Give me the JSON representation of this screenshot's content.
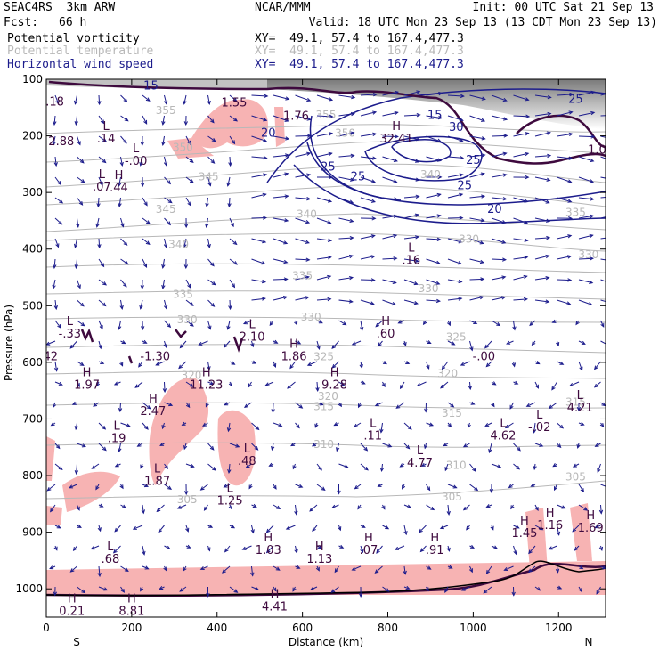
{
  "header": {
    "model": "SEAC4RS  3km ARW",
    "center": "NCAR/MMM",
    "init": "Init: 00 UTC Sat 21 Sep 13",
    "fcst_label": "Fcst:",
    "fcst_value": "66 h",
    "valid": "Valid: 18 UTC Mon 23 Sep 13 (13 CDT Mon 23 Sep 13)",
    "fields": [
      {
        "name": "Potential vorticity",
        "xy": "XY=  49.1, 57.4 to 167.4,477.3",
        "color": "#000000"
      },
      {
        "name": "Potential temperature",
        "xy": "XY=  49.1, 57.4 to 167.4,477.3",
        "color": "#b8b8b8"
      },
      {
        "name": "Horizontal wind speed",
        "xy": "XY=  49.1, 57.4 to 167.4,477.3",
        "color": "#1c1c8c"
      }
    ]
  },
  "chart_data": {
    "type": "cross-section",
    "xlabel": "Distance (km)",
    "ylabel": "Pressure (hPa)",
    "xlim": [
      0,
      1310
    ],
    "ylim": [
      1050,
      100
    ],
    "x_ticks": [
      "0",
      "200",
      "400",
      "600",
      "800",
      "1000",
      "1200"
    ],
    "y_ticks": [
      "100",
      "200",
      "300",
      "400",
      "500",
      "600",
      "700",
      "800",
      "900",
      "1000"
    ],
    "x_end_labels": {
      "left": "S",
      "right": "N"
    },
    "theta_labels": [
      {
        "x": 280,
        "p": 155,
        "t": "355"
      },
      {
        "x": 655,
        "p": 163,
        "t": "355"
      },
      {
        "x": 700,
        "p": 195,
        "t": "350"
      },
      {
        "x": 320,
        "p": 220,
        "t": "350"
      },
      {
        "x": 380,
        "p": 272,
        "t": "345"
      },
      {
        "x": 900,
        "p": 268,
        "t": "340"
      },
      {
        "x": 280,
        "p": 330,
        "t": "345"
      },
      {
        "x": 610,
        "p": 338,
        "t": "340"
      },
      {
        "x": 1240,
        "p": 335,
        "t": "335"
      },
      {
        "x": 310,
        "p": 392,
        "t": "340"
      },
      {
        "x": 990,
        "p": 382,
        "t": "330"
      },
      {
        "x": 600,
        "p": 447,
        "t": "335"
      },
      {
        "x": 320,
        "p": 480,
        "t": "335"
      },
      {
        "x": 895,
        "p": 470,
        "t": "330"
      },
      {
        "x": 1270,
        "p": 410,
        "t": "330"
      },
      {
        "x": 330,
        "p": 525,
        "t": "330"
      },
      {
        "x": 620,
        "p": 520,
        "t": "330"
      },
      {
        "x": 960,
        "p": 555,
        "t": "325"
      },
      {
        "x": 650,
        "p": 590,
        "t": "325"
      },
      {
        "x": 340,
        "p": 623,
        "t": "320"
      },
      {
        "x": 940,
        "p": 620,
        "t": "320"
      },
      {
        "x": 660,
        "p": 660,
        "t": "320"
      },
      {
        "x": 650,
        "p": 678,
        "t": "315"
      },
      {
        "x": 950,
        "p": 690,
        "t": "315"
      },
      {
        "x": 1240,
        "p": 670,
        "t": "315"
      },
      {
        "x": 650,
        "p": 745,
        "t": "310"
      },
      {
        "x": 960,
        "p": 782,
        "t": "310"
      },
      {
        "x": 330,
        "p": 842,
        "t": "305"
      },
      {
        "x": 950,
        "p": 838,
        "t": "305"
      },
      {
        "x": 1240,
        "p": 802,
        "t": "305"
      }
    ],
    "wind_speed_labels": [
      {
        "x": 245,
        "p": 112,
        "t": "15"
      },
      {
        "x": 520,
        "p": 195,
        "t": "20"
      },
      {
        "x": 660,
        "p": 255,
        "t": "25"
      },
      {
        "x": 730,
        "p": 272,
        "t": "25"
      },
      {
        "x": 910,
        "p": 164,
        "t": "15"
      },
      {
        "x": 960,
        "p": 185,
        "t": "30"
      },
      {
        "x": 1000,
        "p": 243,
        "t": "25"
      },
      {
        "x": 980,
        "p": 288,
        "t": "25"
      },
      {
        "x": 1050,
        "p": 330,
        "t": "20"
      },
      {
        "x": 1240,
        "p": 135,
        "t": "25"
      }
    ],
    "pv_extrema": [
      {
        "x": 20,
        "p": 140,
        "h": "",
        "v": ".18"
      },
      {
        "x": 35,
        "p": 210,
        "h": "",
        "v": "2.88"
      },
      {
        "x": 140,
        "p": 205,
        "h": "L",
        "v": ".14"
      },
      {
        "x": 210,
        "p": 245,
        "h": "L",
        "v": "-.00"
      },
      {
        "x": 130,
        "p": 290,
        "h": "L",
        "v": ".07"
      },
      {
        "x": 170,
        "p": 292,
        "h": "H",
        "v": ".44"
      },
      {
        "x": 440,
        "p": 142,
        "h": "",
        "v": "1.55"
      },
      {
        "x": 585,
        "p": 165,
        "h": "",
        "v": "1.76"
      },
      {
        "x": 820,
        "p": 205,
        "h": "H",
        "v": "32.41"
      },
      {
        "x": 1290,
        "p": 225,
        "h": "",
        "v": "1.0"
      },
      {
        "x": 855,
        "p": 420,
        "h": "L",
        "v": ".16"
      },
      {
        "x": 55,
        "p": 550,
        "h": "L",
        "v": "-.33"
      },
      {
        "x": 10,
        "p": 590,
        "h": "",
        "v": "42"
      },
      {
        "x": 95,
        "p": 640,
        "h": "H",
        "v": "1.97"
      },
      {
        "x": 255,
        "p": 590,
        "h": "",
        "v": "-1.30"
      },
      {
        "x": 482,
        "p": 555,
        "h": "L",
        "v": "2.10"
      },
      {
        "x": 580,
        "p": 590,
        "h": "H",
        "v": "1.86"
      },
      {
        "x": 795,
        "p": 550,
        "h": "H",
        "v": ".60"
      },
      {
        "x": 1025,
        "p": 590,
        "h": "",
        "v": "-.00"
      },
      {
        "x": 375,
        "p": 640,
        "h": "H",
        "v": "11.23"
      },
      {
        "x": 250,
        "p": 687,
        "h": "H",
        "v": "2.47"
      },
      {
        "x": 675,
        "p": 640,
        "h": "H",
        "v": "9.28"
      },
      {
        "x": 165,
        "p": 735,
        "h": "L",
        "v": ".19"
      },
      {
        "x": 765,
        "p": 730,
        "h": "L",
        "v": ".11"
      },
      {
        "x": 1070,
        "p": 730,
        "h": "L",
        "v": "4.62"
      },
      {
        "x": 1155,
        "p": 715,
        "h": "L",
        "v": "-.02"
      },
      {
        "x": 1250,
        "p": 680,
        "h": "L",
        "v": "4.21"
      },
      {
        "x": 875,
        "p": 778,
        "h": "L",
        "v": "4.77"
      },
      {
        "x": 260,
        "p": 810,
        "h": "L",
        "v": "1.87"
      },
      {
        "x": 470,
        "p": 775,
        "h": "L",
        "v": ".48"
      },
      {
        "x": 430,
        "p": 845,
        "h": "L",
        "v": "1.25"
      },
      {
        "x": 1120,
        "p": 902,
        "h": "H",
        "v": "1.45"
      },
      {
        "x": 1180,
        "p": 888,
        "h": "H",
        "v": "1.16"
      },
      {
        "x": 1275,
        "p": 893,
        "h": "H",
        "v": "1.69"
      },
      {
        "x": 520,
        "p": 932,
        "h": "H",
        "v": "1.03"
      },
      {
        "x": 640,
        "p": 948,
        "h": "H",
        "v": "1.13"
      },
      {
        "x": 755,
        "p": 932,
        "h": "H",
        "v": ".07"
      },
      {
        "x": 910,
        "p": 932,
        "h": "H",
        "v": ".91"
      },
      {
        "x": 150,
        "p": 948,
        "h": "L",
        "v": ".68"
      },
      {
        "x": 60,
        "p": 1040,
        "h": "H",
        "v": "0.21"
      },
      {
        "x": 200,
        "p": 1040,
        "h": "H",
        "v": "8.81"
      },
      {
        "x": 535,
        "p": 1032,
        "h": "H",
        "v": "4.41"
      }
    ]
  },
  "colors": {
    "pv_shade": "#f7b3b3",
    "pv_contour": "#3e0a3e",
    "theta": "#b8b8b8",
    "wind_contour": "#1c1c8c",
    "wind_arrow": "#1c1c8c",
    "terrain": "#000000"
  }
}
